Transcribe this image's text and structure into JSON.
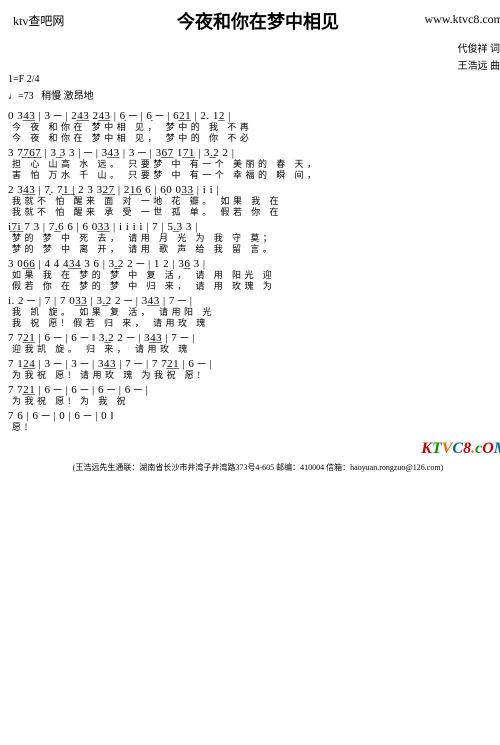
{
  "header": {
    "siteL": "ktv查吧网",
    "title": "今夜和你在梦中相见",
    "siteR": "www.ktvc8.com"
  },
  "credits": {
    "lyric": "代俊祥 词",
    "music": "王浩远 曲"
  },
  "meta": {
    "key": "1=F",
    "time": "2/4",
    "tempo": "♩=73",
    "style": "稍慢 激昂地"
  },
  "rows": [
    {
      "n": "0  3͟4͟3 | 3 ─ | 2͟4͟3  2͟4͟3 | 6̣ ─ | 6̣ ─ | 6͟2͟1 | 2.  1͟2 |",
      "l1": "今    夜              和你在 梦中相   见，                  梦中的   我    不再",
      "l2": "今    夜              和你在 梦中相   见，                  梦中的   你    不必"
    },
    {
      "n": "3 7̣͟7̣͟6̣͟7̣ | 3͟  3  3 | ─ | 3͟4͟3 | 3 ─ | 3͟6͟7  1͟7͟1 | 3͟.2  2 |",
      "l1": "担 心  山高    水   远。            只要梦  中                有一个  美丽的   春    天，",
      "l2": "害 怕  万水    千   山。            只要梦  中                有一个  幸福的   瞬    间，"
    },
    {
      "n": "2  3͟4͟3 | 7̣.  7̣͟1͟ | 2  3  3͟2͟7̣ | 2͟1͟6̣  6̣ | 6̣0  0͟3͟3 | i  i |",
      "l1": "我就不   怕        醒来       面  对  一地      花          瓣。         如果     我  在",
      "l2": "我就不   怕        醒来       承  受  一世      孤          单。         假若     你  在"
    },
    {
      "n": "i͟7͟i  7  3 | 7͟.6  6 | 6  0͟3͟3 | i  i  i  i | 7 | 5͟.3  3 |",
      "l1": "梦的  梦  中   死    去，          请用       月         光              为  我      守     莫；",
      "l2": "梦的  梦  中   离    开，          请用       歌         声              给  我      留     言。"
    },
    {
      "n": "3  0͟6͟6 | 4  4  4͟3͟4  3  6 | 3͟.2  2  ─ | 1  2  | 3͟6  3 |",
      "l1": "    如果   我  在        梦的  梦  中   复        活，            请  用     阳光    迎",
      "l2": "    假若   你  在        梦的  梦  中   归        来，            请  用     玫瑰    为"
    },
    {
      "n": "i.  2 ─ | 7 | 7  0͟3͟3 | 3͟.2  2 ─ | 3͟4͟3 | 7 ─ |",
      "l1": "我    凯                旋。       如果           复            活，          请用阳         光",
      "l2": "我    祝                愿!        假若           归            来，          请用玫         瑰"
    },
    {
      "n": "7  7͟2͟1 | 6 ─ | 6 ─ ‖ 3͟.2  2 ─ | 3͟4͟3 | 7 ─ |",
      "l1": "   迎我凯   旋。                     归           来，          请用玫         瑰"
    },
    {
      "n": "7  1͟2͟4 | 3 ─ | 3 ─ | 3͟4͟3 | 7 ─ | 7  7͟2͟1 | 6 ─ |",
      "l1": "   为我祝   愿!                      请用玫   瑰                    为我祝   愿!"
    },
    {
      "n": "7  7͟2͟1 | 6 ─ | 6 ─ |   6 ─ |   6 ─ |",
      "l1": "   为我祝   愿!                为          我                   祝"
    },
    {
      "n": "7  6 | 6 ─ | 0 | 6 ─ | 0 ‖",
      "l1": "   愿!"
    }
  ],
  "logo": {
    "t1": "K",
    "t2": "T",
    "t3": "V",
    "t4": "C",
    "t5": "8",
    "s1": ".",
    "s2": "c",
    "s3": "O",
    "s4": "M"
  },
  "footer": "(王浩远先生通联：湖南省长沙市井湾子井湾路373号4-605  邮编：410004  信箱：haoyuan.rongzuo@126.com)"
}
